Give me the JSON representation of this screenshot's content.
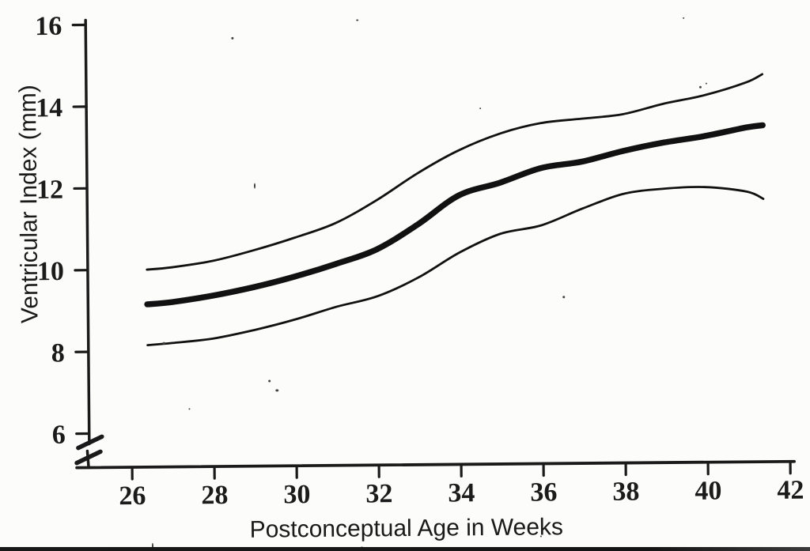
{
  "figure": {
    "background": "#fcfcfb",
    "ink_color": "#1a1a1a",
    "curve_color": "#111111"
  },
  "chart_data": {
    "type": "line",
    "title": "",
    "xlabel": "Postconceptual Age in Weeks",
    "ylabel": "Ventricular Index (mm)",
    "x_ticks": [
      "26",
      "28",
      "30",
      "32",
      "34",
      "36",
      "38",
      "40",
      "42"
    ],
    "y_ticks": [
      "6",
      "8",
      "10",
      "12",
      "14",
      "16"
    ],
    "xlim": [
      25,
      42.2
    ],
    "ylim": [
      6,
      16
    ],
    "y_axis_break_below_first_tick": true,
    "grid": false,
    "legend": null,
    "x": [
      26.4,
      27,
      28,
      29,
      30,
      31,
      32,
      33,
      34,
      35,
      36,
      37,
      38,
      39,
      40,
      41,
      41.4
    ],
    "series": [
      {
        "name": "upper-curve",
        "line": "thin",
        "values": [
          10.0,
          10.05,
          10.2,
          10.45,
          10.75,
          11.1,
          11.65,
          12.3,
          12.85,
          13.25,
          13.5,
          13.6,
          13.7,
          13.95,
          14.15,
          14.45,
          14.65
        ]
      },
      {
        "name": "center-curve-bold",
        "line": "thick",
        "values": [
          9.15,
          9.2,
          9.35,
          9.55,
          9.8,
          10.1,
          10.45,
          11.05,
          11.75,
          12.05,
          12.4,
          12.55,
          12.8,
          13.0,
          13.15,
          13.35,
          13.4
        ]
      },
      {
        "name": "lower-curve",
        "line": "thin",
        "values": [
          8.15,
          8.2,
          8.3,
          8.5,
          8.75,
          9.05,
          9.3,
          9.75,
          10.35,
          10.8,
          11.0,
          11.4,
          11.75,
          11.87,
          11.9,
          11.78,
          11.6
        ]
      }
    ]
  }
}
